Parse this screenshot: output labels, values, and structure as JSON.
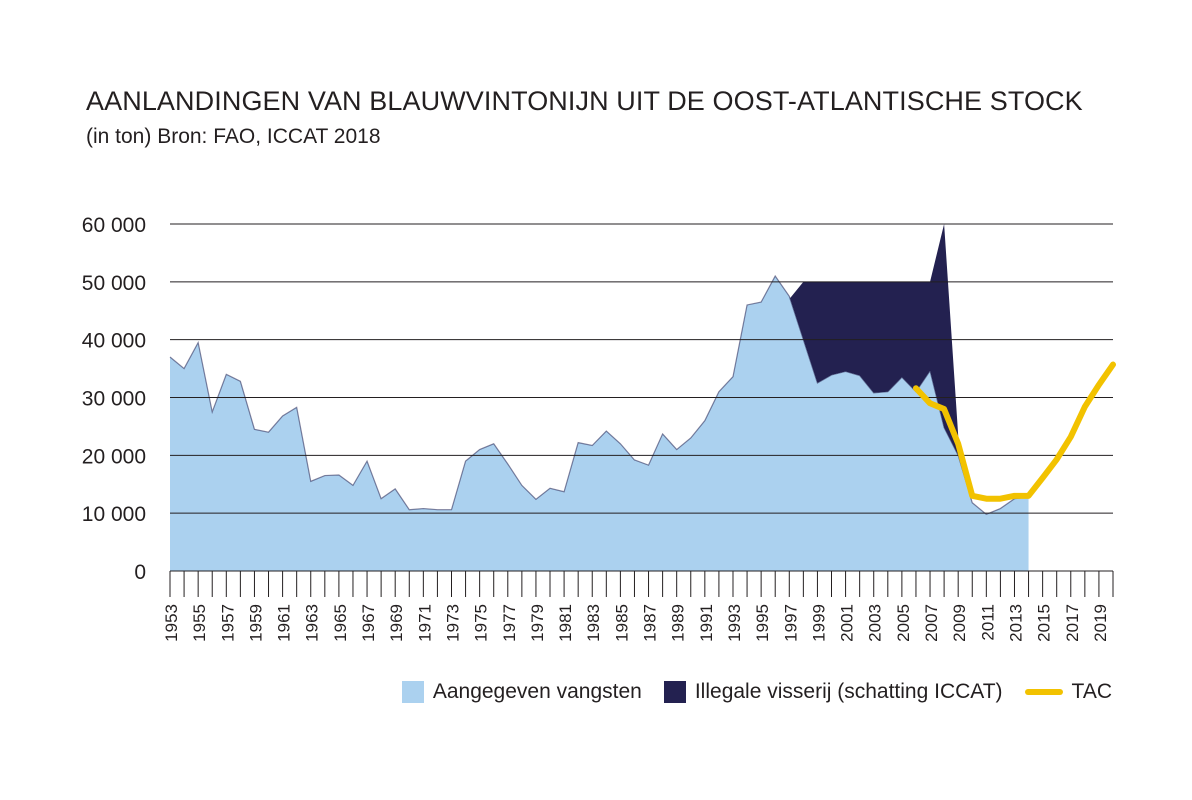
{
  "chart_data": {
    "type": "area",
    "title": "AANLANDINGEN VAN BLAUWVINTONIJN UIT DE OOST-ATLANTISCHE STOCK",
    "subtitle": "(in ton) Bron: FAO, ICCAT 2018",
    "ylim": [
      0,
      60000
    ],
    "yticks": [
      {
        "value": 0,
        "label": "0"
      },
      {
        "value": 10000,
        "label": "10 000"
      },
      {
        "value": 20000,
        "label": "20 000"
      },
      {
        "value": 30000,
        "label": "30 000"
      },
      {
        "value": 40000,
        "label": "40 000"
      },
      {
        "value": 50000,
        "label": "50 000"
      },
      {
        "value": 60000,
        "label": "60 000"
      }
    ],
    "xlim": [
      1953,
      2020
    ],
    "xtick_labels": [
      1953,
      1955,
      1957,
      1959,
      1961,
      1963,
      1965,
      1967,
      1969,
      1971,
      1973,
      1975,
      1977,
      1979,
      1981,
      1983,
      1985,
      1987,
      1989,
      1991,
      1993,
      1995,
      1997,
      1999,
      2001,
      2003,
      2005,
      2007,
      2009,
      2011,
      2013,
      2015,
      2017,
      2019
    ],
    "grid": true,
    "legend_position": "bottom-right",
    "colors": {
      "reported": "#abd1ef",
      "illegal": "#232150",
      "tac": "#f2c200",
      "grid": "#231f20"
    },
    "series": [
      {
        "name": "Aangegeven vangsten",
        "kind": "area",
        "x": [
          1953,
          1954,
          1955,
          1956,
          1957,
          1958,
          1959,
          1960,
          1961,
          1962,
          1963,
          1964,
          1965,
          1966,
          1967,
          1968,
          1969,
          1970,
          1971,
          1972,
          1973,
          1974,
          1975,
          1976,
          1977,
          1978,
          1979,
          1980,
          1981,
          1982,
          1983,
          1984,
          1985,
          1986,
          1987,
          1988,
          1989,
          1990,
          1991,
          1992,
          1993,
          1994,
          1995,
          1996,
          1997,
          1998,
          1999,
          2000,
          2001,
          2002,
          2003,
          2004,
          2005,
          2006,
          2007,
          2008,
          2009,
          2010,
          2011,
          2012,
          2013,
          2014
        ],
        "values": [
          37000,
          35000,
          39500,
          27500,
          34000,
          32800,
          24500,
          24000,
          26800,
          28300,
          15500,
          16500,
          16600,
          14800,
          19000,
          12500,
          14200,
          10600,
          10800,
          10600,
          10600,
          19000,
          21000,
          22000,
          18500,
          14800,
          12400,
          14300,
          13700,
          22200,
          21700,
          24200,
          22000,
          19200,
          18300,
          23700,
          21000,
          23000,
          26000,
          31000,
          33600,
          46000,
          46500,
          51000,
          47500,
          40000,
          32500,
          33900,
          34500,
          33800,
          30800,
          31000,
          33500,
          31000,
          34600,
          24800,
          20000,
          11800,
          9800,
          10800,
          12500,
          12800
        ]
      },
      {
        "name": "Illegale visserij (schatting ICCAT)",
        "kind": "area-total",
        "x": [
          1997,
          1998,
          2007,
          2008,
          2009
        ],
        "values": [
          47000,
          50000,
          50000,
          60000,
          23500
        ]
      },
      {
        "name": "TAC",
        "kind": "line",
        "x": [
          2006,
          2007,
          2008,
          2009,
          2010,
          2011,
          2012,
          2013,
          2014,
          2015,
          2016,
          2017,
          2018,
          2019,
          2020
        ],
        "values": [
          31600,
          29000,
          28000,
          22000,
          13000,
          12500,
          12500,
          13000,
          13000,
          16100,
          19300,
          23200,
          28400,
          32200,
          35700
        ]
      }
    ]
  }
}
